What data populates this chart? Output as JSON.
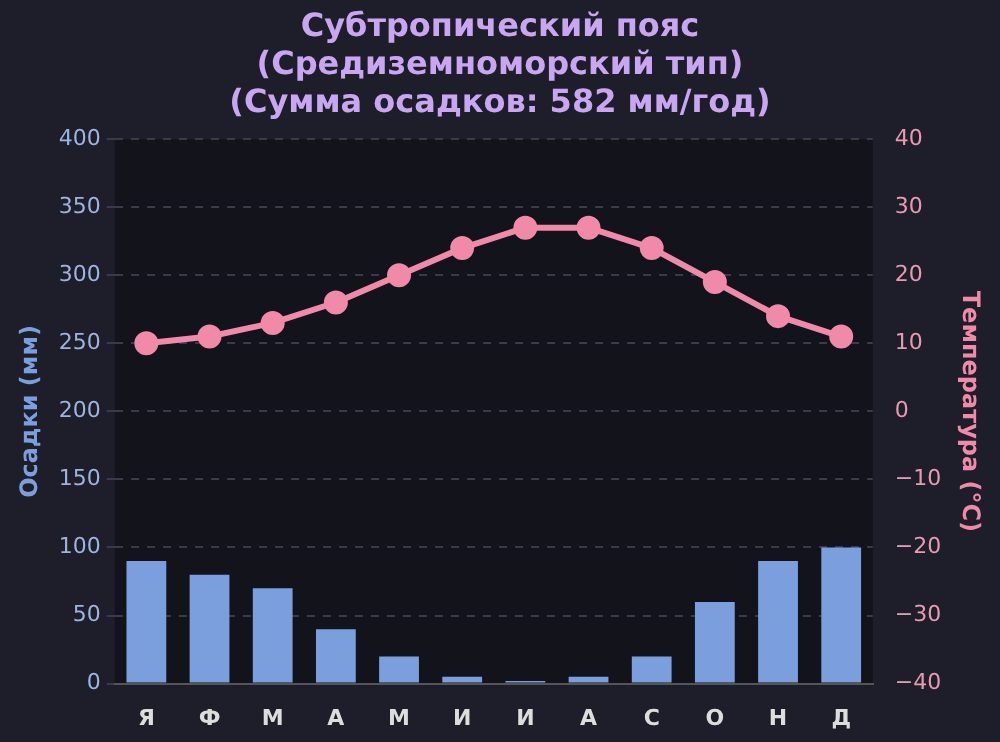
{
  "chart_data": {
    "type": "bar",
    "title": "Субтропический пояс\n(Средиземноморский тип)\n(Сумма осадков: 582 мм/год)",
    "ylabel": "Осадки (мм)",
    "y2label": "Температура (°C)",
    "categories": [
      "Я",
      "Ф",
      "М",
      "А",
      "М",
      "И",
      "И",
      "А",
      "С",
      "О",
      "Н",
      "Д"
    ],
    "series": [
      {
        "color": "#7b9fdc",
        "values": [
          90,
          80,
          70,
          40,
          20,
          5,
          2,
          5,
          20,
          60,
          90,
          100
        ]
      },
      {
        "type": "line",
        "axis": "y2",
        "color": "#f08aa8",
        "marker": "circle",
        "values": [
          10,
          11,
          13,
          16,
          20,
          24,
          27,
          27,
          24,
          19,
          14,
          11
        ]
      }
    ],
    "ylim": [
      0,
      400
    ],
    "yticks": [
      0,
      50,
      100,
      150,
      200,
      250,
      300,
      350,
      400
    ],
    "y2lim": [
      -40,
      40
    ],
    "y2ticks": [
      {
        "value": -40,
        "label": "−40"
      },
      {
        "value": -30,
        "label": "−30"
      },
      {
        "value": -20,
        "label": "−20"
      },
      {
        "value": -10,
        "label": "−10"
      },
      0,
      10,
      20,
      30,
      40
    ],
    "grid": "y",
    "legend": false
  }
}
